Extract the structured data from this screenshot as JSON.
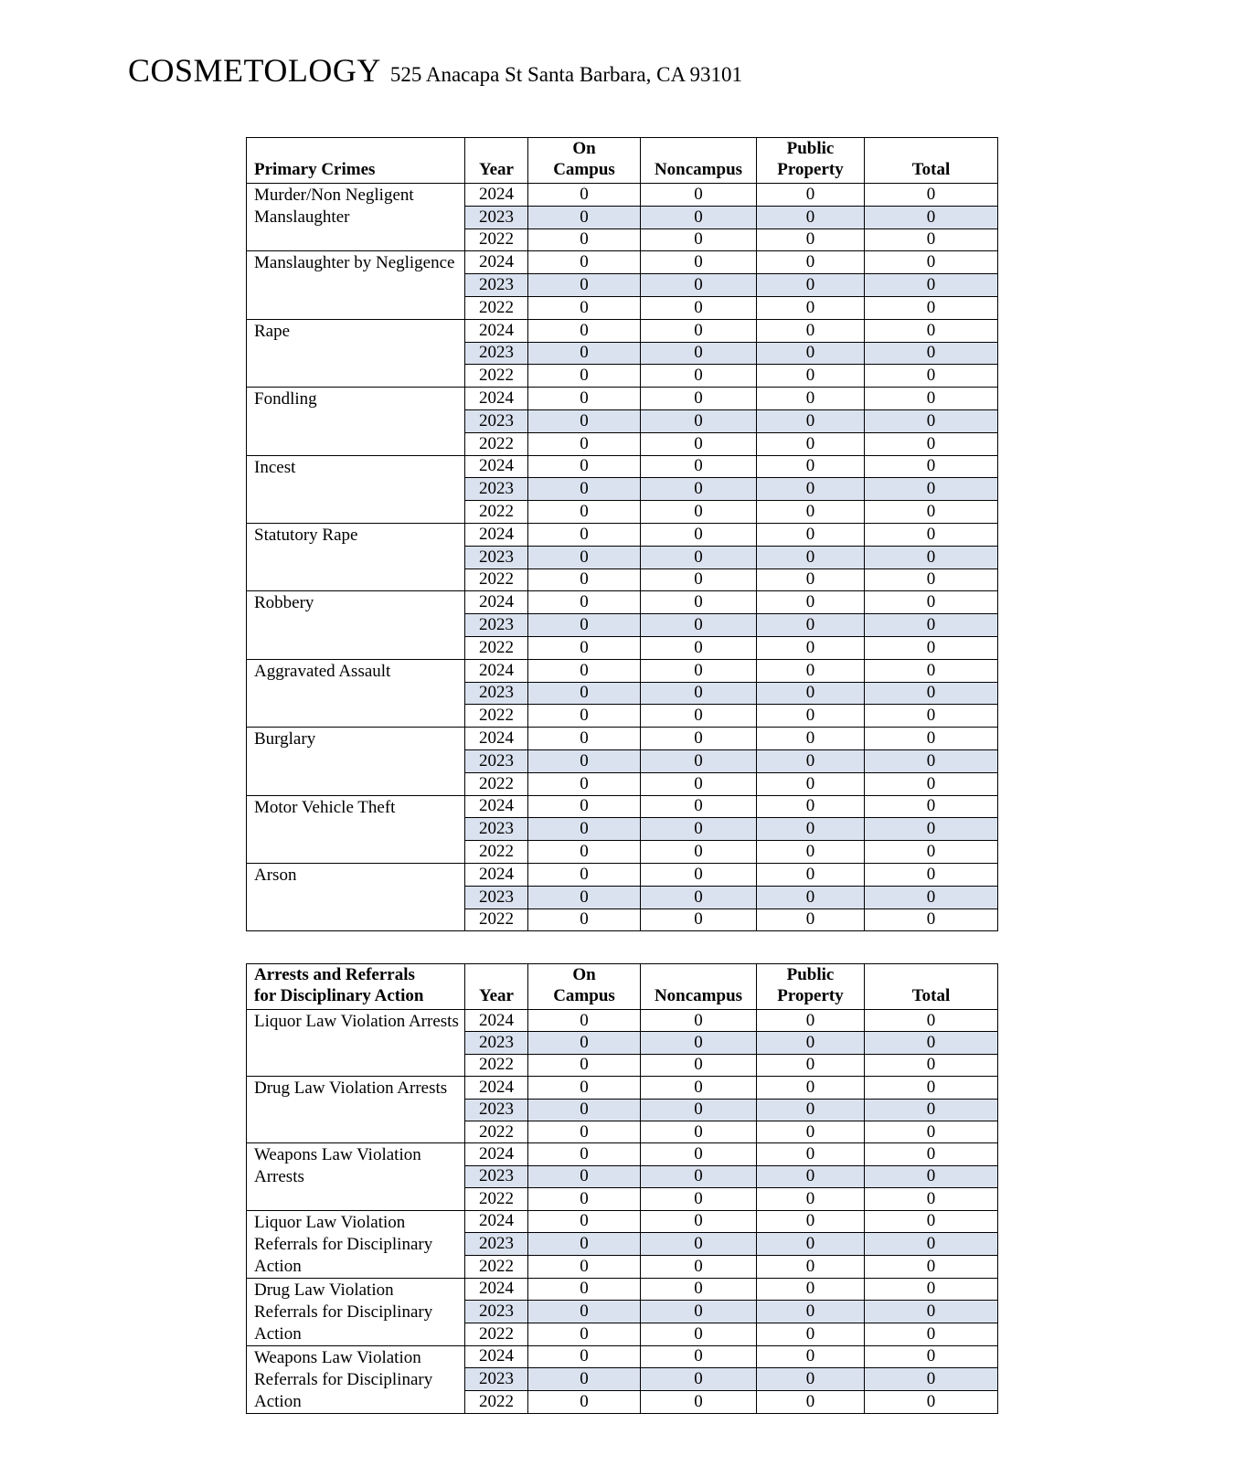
{
  "header": {
    "program": "COSMETOLOGY",
    "address": "525 Anacapa St Santa Barbara, CA 93101"
  },
  "colors": {
    "page_background": "#ffffff",
    "text": "#000000",
    "border": "#000000",
    "row_highlight": "#dbe2ef"
  },
  "tables": [
    {
      "id": "primary-crimes-table",
      "title": "Primary Crimes",
      "columns": [
        "Year",
        "On\nCampus",
        "Noncampus",
        "Public\nProperty",
        "Total"
      ],
      "categories": [
        {
          "name": "Murder/Non Negligent Manslaughter",
          "rows": [
            {
              "year": "2024",
              "values": [
                "0",
                "0",
                "0",
                "0"
              ],
              "highlighted": false
            },
            {
              "year": "2023",
              "values": [
                "0",
                "0",
                "0",
                "0"
              ],
              "highlighted": true
            },
            {
              "year": "2022",
              "values": [
                "0",
                "0",
                "0",
                "0"
              ],
              "highlighted": false
            }
          ]
        },
        {
          "name": "Manslaughter by Negligence",
          "rows": [
            {
              "year": "2024",
              "values": [
                "0",
                "0",
                "0",
                "0"
              ],
              "highlighted": false
            },
            {
              "year": "2023",
              "values": [
                "0",
                "0",
                "0",
                "0"
              ],
              "highlighted": true
            },
            {
              "year": "2022",
              "values": [
                "0",
                "0",
                "0",
                "0"
              ],
              "highlighted": false
            }
          ]
        },
        {
          "name": "Rape",
          "rows": [
            {
              "year": "2024",
              "values": [
                "0",
                "0",
                "0",
                "0"
              ],
              "highlighted": false
            },
            {
              "year": "2023",
              "values": [
                "0",
                "0",
                "0",
                "0"
              ],
              "highlighted": true
            },
            {
              "year": "2022",
              "values": [
                "0",
                "0",
                "0",
                "0"
              ],
              "highlighted": false
            }
          ]
        },
        {
          "name": "Fondling",
          "rows": [
            {
              "year": "2024",
              "values": [
                "0",
                "0",
                "0",
                "0"
              ],
              "highlighted": false
            },
            {
              "year": "2023",
              "values": [
                "0",
                "0",
                "0",
                "0"
              ],
              "highlighted": true
            },
            {
              "year": "2022",
              "values": [
                "0",
                "0",
                "0",
                "0"
              ],
              "highlighted": false
            }
          ]
        },
        {
          "name": "Incest",
          "rows": [
            {
              "year": "2024",
              "values": [
                "0",
                "0",
                "0",
                "0"
              ],
              "highlighted": false
            },
            {
              "year": "2023",
              "values": [
                "0",
                "0",
                "0",
                "0"
              ],
              "highlighted": true
            },
            {
              "year": "2022",
              "values": [
                "0",
                "0",
                "0",
                "0"
              ],
              "highlighted": false
            }
          ]
        },
        {
          "name": "Statutory Rape",
          "rows": [
            {
              "year": "2024",
              "values": [
                "0",
                "0",
                "0",
                "0"
              ],
              "highlighted": false
            },
            {
              "year": "2023",
              "values": [
                "0",
                "0",
                "0",
                "0"
              ],
              "highlighted": true
            },
            {
              "year": "2022",
              "values": [
                "0",
                "0",
                "0",
                "0"
              ],
              "highlighted": false
            }
          ]
        },
        {
          "name": "Robbery",
          "rows": [
            {
              "year": "2024",
              "values": [
                "0",
                "0",
                "0",
                "0"
              ],
              "highlighted": false
            },
            {
              "year": "2023",
              "values": [
                "0",
                "0",
                "0",
                "0"
              ],
              "highlighted": true
            },
            {
              "year": "2022",
              "values": [
                "0",
                "0",
                "0",
                "0"
              ],
              "highlighted": false
            }
          ]
        },
        {
          "name": "Aggravated Assault",
          "rows": [
            {
              "year": "2024",
              "values": [
                "0",
                "0",
                "0",
                "0"
              ],
              "highlighted": false
            },
            {
              "year": "2023",
              "values": [
                "0",
                "0",
                "0",
                "0"
              ],
              "highlighted": true
            },
            {
              "year": "2022",
              "values": [
                "0",
                "0",
                "0",
                "0"
              ],
              "highlighted": false
            }
          ]
        },
        {
          "name": "Burglary",
          "rows": [
            {
              "year": "2024",
              "values": [
                "0",
                "0",
                "0",
                "0"
              ],
              "highlighted": false
            },
            {
              "year": "2023",
              "values": [
                "0",
                "0",
                "0",
                "0"
              ],
              "highlighted": true
            },
            {
              "year": "2022",
              "values": [
                "0",
                "0",
                "0",
                "0"
              ],
              "highlighted": false
            }
          ]
        },
        {
          "name": "Motor Vehicle Theft",
          "rows": [
            {
              "year": "2024",
              "values": [
                "0",
                "0",
                "0",
                "0"
              ],
              "highlighted": false
            },
            {
              "year": "2023",
              "values": [
                "0",
                "0",
                "0",
                "0"
              ],
              "highlighted": true
            },
            {
              "year": "2022",
              "values": [
                "0",
                "0",
                "0",
                "0"
              ],
              "highlighted": false
            }
          ]
        },
        {
          "name": "Arson",
          "rows": [
            {
              "year": "2024",
              "values": [
                "0",
                "0",
                "0",
                "0"
              ],
              "highlighted": false
            },
            {
              "year": "2023",
              "values": [
                "0",
                "0",
                "0",
                "0"
              ],
              "highlighted": true
            },
            {
              "year": "2022",
              "values": [
                "0",
                "0",
                "0",
                "0"
              ],
              "highlighted": false
            }
          ]
        }
      ]
    },
    {
      "id": "arrests-referrals-table",
      "title": "Arrests and Referrals\nfor Disciplinary Action",
      "columns": [
        "Year",
        "On\nCampus",
        "Noncampus",
        "Public\nProperty",
        "Total"
      ],
      "categories": [
        {
          "name": "Liquor Law Violation Arrests",
          "rows": [
            {
              "year": "2024",
              "values": [
                "0",
                "0",
                "0",
                "0"
              ],
              "highlighted": false
            },
            {
              "year": "2023",
              "values": [
                "0",
                "0",
                "0",
                "0"
              ],
              "highlighted": true
            },
            {
              "year": "2022",
              "values": [
                "0",
                "0",
                "0",
                "0"
              ],
              "highlighted": false
            }
          ]
        },
        {
          "name": "Drug Law Violation Arrests",
          "rows": [
            {
              "year": "2024",
              "values": [
                "0",
                "0",
                "0",
                "0"
              ],
              "highlighted": false
            },
            {
              "year": "2023",
              "values": [
                "0",
                "0",
                "0",
                "0"
              ],
              "highlighted": true
            },
            {
              "year": "2022",
              "values": [
                "0",
                "0",
                "0",
                "0"
              ],
              "highlighted": false
            }
          ]
        },
        {
          "name": "Weapons Law Violation Arrests",
          "rows": [
            {
              "year": "2024",
              "values": [
                "0",
                "0",
                "0",
                "0"
              ],
              "highlighted": false
            },
            {
              "year": "2023",
              "values": [
                "0",
                "0",
                "0",
                "0"
              ],
              "highlighted": true
            },
            {
              "year": "2022",
              "values": [
                "0",
                "0",
                "0",
                "0"
              ],
              "highlighted": false
            }
          ]
        },
        {
          "name": "Liquor Law Violation Referrals for Disciplinary Action",
          "rows": [
            {
              "year": "2024",
              "values": [
                "0",
                "0",
                "0",
                "0"
              ],
              "highlighted": false
            },
            {
              "year": "2023",
              "values": [
                "0",
                "0",
                "0",
                "0"
              ],
              "highlighted": true
            },
            {
              "year": "2022",
              "values": [
                "0",
                "0",
                "0",
                "0"
              ],
              "highlighted": false
            }
          ]
        },
        {
          "name": "Drug Law Violation Referrals for Disciplinary Action",
          "rows": [
            {
              "year": "2024",
              "values": [
                "0",
                "0",
                "0",
                "0"
              ],
              "highlighted": false
            },
            {
              "year": "2023",
              "values": [
                "0",
                "0",
                "0",
                "0"
              ],
              "highlighted": true
            },
            {
              "year": "2022",
              "values": [
                "0",
                "0",
                "0",
                "0"
              ],
              "highlighted": false
            }
          ]
        },
        {
          "name": "Weapons Law Violation Referrals for Disciplinary Action",
          "rows": [
            {
              "year": "2024",
              "values": [
                "0",
                "0",
                "0",
                "0"
              ],
              "highlighted": false
            },
            {
              "year": "2023",
              "values": [
                "0",
                "0",
                "0",
                "0"
              ],
              "highlighted": true
            },
            {
              "year": "2022",
              "values": [
                "0",
                "0",
                "0",
                "0"
              ],
              "highlighted": false
            }
          ]
        }
      ]
    }
  ]
}
